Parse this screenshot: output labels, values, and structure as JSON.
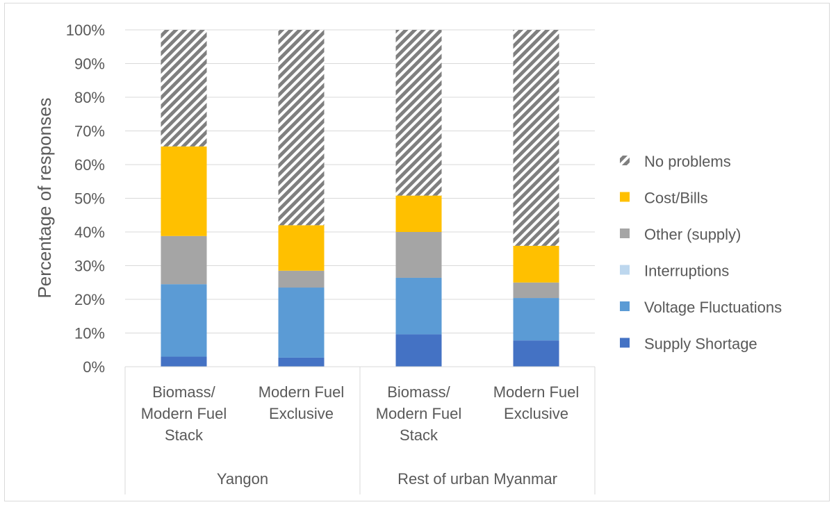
{
  "chart_data": {
    "type": "bar",
    "stacked": true,
    "ylabel": "Percentage of responses",
    "ylim": [
      0,
      100
    ],
    "yticks": [
      "0%",
      "10%",
      "20%",
      "30%",
      "40%",
      "50%",
      "60%",
      "70%",
      "80%",
      "90%",
      "100%"
    ],
    "grid": true,
    "legend_position": "right",
    "categories": [
      {
        "lines": [
          "Biomass/",
          "Modern Fuel",
          "Stack"
        ],
        "group": "Yangon"
      },
      {
        "lines": [
          "Modern Fuel",
          "Exclusive"
        ],
        "group": "Yangon"
      },
      {
        "lines": [
          "Biomass/",
          "Modern Fuel",
          "Stack"
        ],
        "group": "Rest of urban Myanmar"
      },
      {
        "lines": [
          "Modern Fuel",
          "Exclusive"
        ],
        "group": "Rest of urban Myanmar"
      }
    ],
    "groups": [
      "Yangon",
      "Rest of urban Myanmar"
    ],
    "series": [
      {
        "name": "Supply Shortage",
        "color": "#4472c4",
        "pattern": false,
        "values": [
          3,
          2.7,
          9.6,
          7.8
        ]
      },
      {
        "name": "Voltage Fluctuations",
        "color": "#5b9bd5",
        "pattern": false,
        "values": [
          21.5,
          20.8,
          16.8,
          12.6
        ]
      },
      {
        "name": "Interruptions",
        "color": "#bdd7ee",
        "pattern": false,
        "values": [
          0,
          0,
          0,
          0
        ]
      },
      {
        "name": "Other (supply)",
        "color": "#a5a5a5",
        "pattern": false,
        "values": [
          14.3,
          5,
          13.6,
          4.6
        ]
      },
      {
        "name": "Cost/Bills",
        "color": "#ffc000",
        "pattern": false,
        "values": [
          26.6,
          13.5,
          10.8,
          10.9
        ]
      },
      {
        "name": "No problems",
        "color": "#808080",
        "pattern": true,
        "values": [
          34.6,
          58,
          49.2,
          64.1
        ]
      }
    ]
  }
}
